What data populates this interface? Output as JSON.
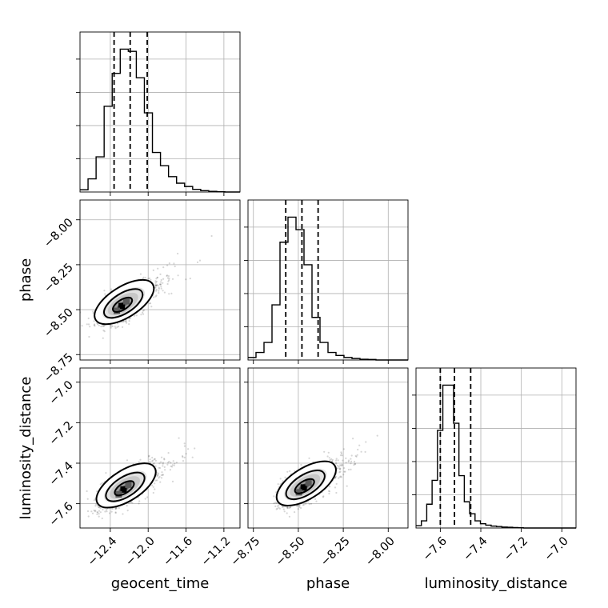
{
  "chart_data": {
    "type": "corner",
    "parameters": [
      {
        "id": "geocent_time",
        "label": "geocent_time",
        "range": [
          -12.72,
          -11.03
        ],
        "ticks": [
          -12.4,
          -12.0,
          -11.6,
          -11.2
        ],
        "tick_labels": [
          "−12.4",
          "−12.0",
          "−11.6",
          "−11.2"
        ],
        "quantiles": [
          -12.36,
          -12.19,
          -12.01
        ],
        "hist_edges_start": -12.72,
        "hist_bin_width": 0.085,
        "hist_counts": [
          0.01,
          0.06,
          0.16,
          0.39,
          0.54,
          0.65,
          0.64,
          0.52,
          0.36,
          0.18,
          0.12,
          0.07,
          0.04,
          0.025,
          0.012,
          0.006,
          0.003,
          0.001,
          0.0,
          0.0
        ]
      },
      {
        "id": "phase",
        "label": "phase",
        "range": [
          -8.78,
          -7.89
        ],
        "ticks": [
          -8.75,
          -8.5,
          -8.25,
          -8.0
        ],
        "tick_labels": [
          "−8.75",
          "−8.50",
          "−8.25",
          "−8.00"
        ],
        "quantiles": [
          -8.57,
          -8.48,
          -8.39
        ],
        "hist_edges_start": -8.78,
        "hist_bin_width": 0.0445,
        "hist_counts": [
          0.01,
          0.03,
          0.07,
          0.22,
          0.47,
          0.57,
          0.52,
          0.38,
          0.17,
          0.07,
          0.03,
          0.018,
          0.01,
          0.006,
          0.003,
          0.002,
          0.0,
          0.0,
          0.0,
          0.0
        ]
      },
      {
        "id": "luminosity_distance",
        "label": "luminosity_distance",
        "range": [
          -7.72,
          -6.93
        ],
        "ticks": [
          -7.6,
          -7.4,
          -7.2,
          -7.0
        ],
        "tick_labels": [
          "−7.6",
          "−7.4",
          "−7.2",
          "−7.0"
        ],
        "quantiles": [
          -7.6,
          -7.53,
          -7.45
        ],
        "hist_edges_start": -7.72,
        "hist_bin_width": 0.0265,
        "hist_counts": [
          0.01,
          0.03,
          0.1,
          0.2,
          0.41,
          0.6,
          0.6,
          0.44,
          0.22,
          0.11,
          0.06,
          0.03,
          0.018,
          0.012,
          0.008,
          0.006,
          0.004,
          0.003,
          0.002,
          0.001,
          0.0,
          0.0,
          0.0,
          0.0,
          0.0,
          0.0,
          0.0,
          0.0,
          0.0,
          0.0
        ]
      }
    ],
    "pairs": [
      {
        "x": "geocent_time",
        "y": "phase",
        "mode": [
          -12.28,
          -8.48
        ],
        "correlation": 0.85
      },
      {
        "x": "geocent_time",
        "y": "luminosity_distance",
        "mode": [
          -12.26,
          -7.53
        ],
        "correlation": 0.85
      },
      {
        "x": "phase",
        "y": "luminosity_distance",
        "mode": [
          -8.47,
          -7.52
        ],
        "correlation": 0.85
      }
    ],
    "grid": true,
    "hist_y_ticks_labeled": false
  }
}
